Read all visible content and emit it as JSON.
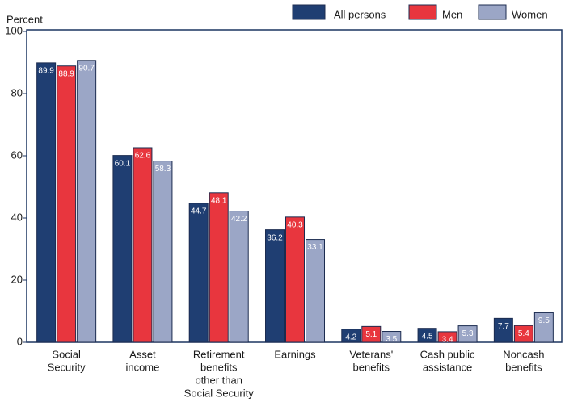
{
  "chart_data": {
    "type": "bar",
    "y_axis_label": "Percent",
    "categories": [
      [
        "Social",
        "Security"
      ],
      [
        "Asset",
        "income"
      ],
      [
        "Retirement",
        "benefits",
        "other than",
        "Social Security"
      ],
      [
        "Earnings"
      ],
      [
        "Veterans'",
        "benefits"
      ],
      [
        "Cash public",
        "assistance"
      ],
      [
        "Noncash",
        "benefits"
      ]
    ],
    "series": [
      {
        "name": "All persons",
        "color": "#1f3e72",
        "values": [
          89.9,
          60.1,
          44.7,
          36.2,
          4.2,
          4.5,
          7.7
        ]
      },
      {
        "name": "Men",
        "color": "#e8363e",
        "values": [
          88.9,
          62.6,
          48.1,
          40.3,
          5.1,
          3.4,
          5.4
        ]
      },
      {
        "name": "Women",
        "color": "#9ba6c6",
        "values": [
          90.7,
          58.3,
          42.2,
          33.1,
          3.5,
          5.3,
          9.5
        ]
      }
    ],
    "ylim": [
      0,
      100
    ],
    "yticks": [
      0,
      20,
      40,
      60,
      80,
      100
    ],
    "grid": false,
    "legend": "top-right"
  }
}
